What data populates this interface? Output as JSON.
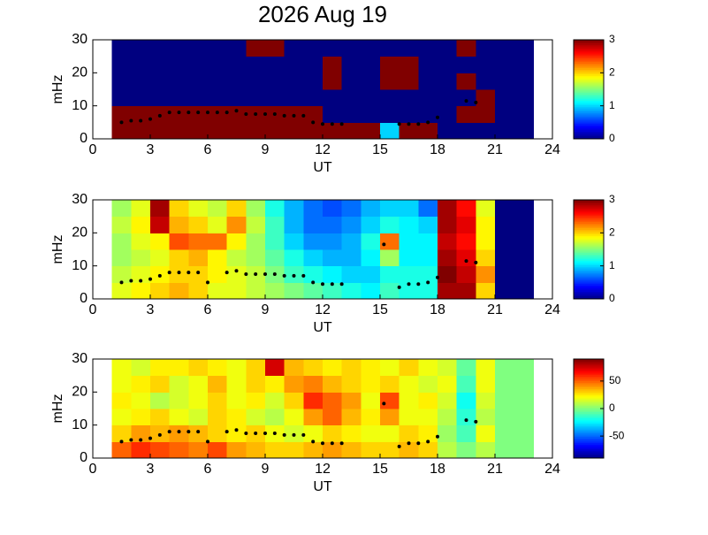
{
  "chart_data": [
    {
      "type": "heatmap",
      "title": "2026 Aug 19",
      "xlabel": "UT",
      "ylabel": "mHz",
      "xlim": [
        0,
        24
      ],
      "xticks": [
        0,
        3,
        6,
        9,
        12,
        15,
        18,
        21,
        24
      ],
      "ylim": [
        0,
        30
      ],
      "yticks": [
        0,
        10,
        20,
        30
      ],
      "clim": [
        0,
        3
      ],
      "cticks": [
        0,
        1,
        2,
        3
      ],
      "colormap": "jet",
      "x": [
        1,
        2,
        3,
        4,
        5,
        6,
        7,
        8,
        9,
        10,
        11,
        12,
        13,
        14,
        15,
        16,
        17,
        18,
        19,
        20,
        21,
        22,
        23
      ],
      "y": [
        0,
        5,
        10,
        15,
        20,
        25,
        30
      ],
      "z": [
        [
          3,
          3,
          3,
          3,
          3,
          3,
          3,
          3,
          3,
          3,
          3,
          3,
          3,
          3,
          1,
          3,
          3,
          0,
          0,
          0,
          0,
          0
        ],
        [
          3,
          3,
          3,
          3,
          3,
          3,
          3,
          3,
          3,
          3,
          3,
          0,
          0,
          0,
          0,
          0,
          0,
          0,
          3,
          3,
          0,
          0
        ],
        [
          0,
          0,
          0,
          0,
          0,
          0,
          0,
          0,
          0,
          0,
          0,
          0,
          0,
          0,
          0,
          0,
          0,
          0,
          0,
          3,
          0,
          0
        ],
        [
          0,
          0,
          0,
          0,
          0,
          0,
          0,
          0,
          0,
          0,
          0,
          3,
          0,
          0,
          3,
          3,
          0,
          0,
          3,
          0,
          0,
          0
        ],
        [
          0,
          0,
          0,
          0,
          0,
          0,
          0,
          0,
          0,
          0,
          0,
          3,
          0,
          0,
          3,
          3,
          0,
          0,
          0,
          0,
          0,
          0
        ],
        [
          0,
          0,
          0,
          0,
          0,
          0,
          0,
          3,
          3,
          0,
          0,
          0,
          0,
          0,
          0,
          0,
          0,
          0,
          3,
          0,
          0,
          0
        ]
      ],
      "trace": {
        "color": "#000000",
        "x": [
          1.5,
          2,
          2.5,
          3,
          3.5,
          4,
          4.5,
          5,
          5.5,
          6,
          6.5,
          7,
          7.5,
          8,
          8.5,
          9,
          9.5,
          10,
          10.5,
          11,
          11.5,
          12,
          12.5,
          13,
          16,
          16.5,
          17,
          17.5,
          18,
          19.5,
          20
        ],
        "y": [
          5,
          5.5,
          5.5,
          6,
          7,
          8,
          8,
          8,
          8,
          8,
          8,
          8,
          8.5,
          7.5,
          7.5,
          7.5,
          7.5,
          7,
          7,
          7,
          5,
          4.5,
          4.5,
          4.5,
          4.5,
          4.5,
          4.5,
          5,
          6.5,
          11.5,
          11
        ]
      }
    },
    {
      "type": "heatmap",
      "xlabel": "UT",
      "ylabel": "mHz",
      "xlim": [
        0,
        24
      ],
      "xticks": [
        0,
        3,
        6,
        9,
        12,
        15,
        18,
        21,
        24
      ],
      "ylim": [
        0,
        30
      ],
      "yticks": [
        0,
        10,
        20,
        30
      ],
      "clim": [
        0,
        3
      ],
      "cticks": [
        0,
        1,
        2,
        3
      ],
      "colormap": "jet",
      "x": [
        1,
        2,
        3,
        4,
        5,
        6,
        7,
        8,
        9,
        10,
        11,
        12,
        13,
        14,
        15,
        16,
        17,
        18,
        19,
        20,
        21,
        22,
        23
      ],
      "y": [
        0,
        5,
        10,
        15,
        20,
        25,
        30
      ],
      "z": [
        [
          1.8,
          1.9,
          2.0,
          2.1,
          2.0,
          1.8,
          1.8,
          1.7,
          1.6,
          1.5,
          1.4,
          1.3,
          1.2,
          1.1,
          1.3,
          1.2,
          1.2,
          2.9,
          2.9,
          2.0,
          0,
          0
        ],
        [
          1.7,
          1.8,
          1.9,
          2.0,
          2.0,
          1.9,
          1.8,
          1.7,
          1.5,
          1.3,
          1.2,
          1.1,
          1.0,
          1.0,
          1.2,
          1.2,
          1.2,
          3.0,
          2.8,
          2.2,
          0,
          0
        ],
        [
          1.6,
          1.7,
          1.8,
          2.0,
          2.1,
          1.9,
          1.7,
          1.6,
          1.4,
          1.2,
          1.0,
          0.9,
          0.9,
          1.1,
          1.6,
          1.1,
          1.1,
          2.9,
          2.7,
          2.0,
          0,
          0
        ],
        [
          1.6,
          1.8,
          1.9,
          2.4,
          2.3,
          2.3,
          1.9,
          1.6,
          1.3,
          1.0,
          0.8,
          0.8,
          0.9,
          1.2,
          2.3,
          1.1,
          1.1,
          2.8,
          2.6,
          1.9,
          0,
          0
        ],
        [
          1.7,
          1.9,
          2.8,
          2.1,
          2.0,
          1.8,
          2.2,
          1.7,
          1.3,
          0.9,
          0.7,
          0.7,
          0.8,
          1.0,
          1.2,
          1.1,
          1.0,
          2.9,
          2.7,
          1.9,
          0,
          0
        ],
        [
          1.6,
          1.8,
          2.9,
          2.0,
          1.8,
          1.7,
          2.0,
          1.6,
          1.2,
          0.9,
          0.7,
          0.6,
          0.7,
          0.9,
          1.0,
          1.0,
          0.7,
          2.9,
          2.6,
          1.8,
          0,
          0
        ]
      ],
      "trace": {
        "color": "#000000",
        "x": [
          1.5,
          2,
          2.5,
          3,
          3.5,
          4,
          4.5,
          5,
          5.5,
          6,
          7,
          7.5,
          8,
          8.5,
          9,
          9.5,
          10,
          10.5,
          11,
          11.5,
          12,
          12.5,
          13,
          15.2,
          16,
          16.5,
          17,
          17.5,
          18,
          19.5,
          20
        ],
        "y": [
          5,
          5.5,
          5.5,
          6,
          7,
          8,
          8,
          8,
          8,
          5,
          8,
          8.5,
          7.5,
          7.5,
          7.5,
          7.5,
          7,
          7,
          7,
          5,
          4.5,
          4.5,
          4.5,
          16.5,
          3.5,
          4.5,
          4.5,
          5,
          6.5,
          11.5,
          11
        ]
      }
    },
    {
      "type": "heatmap",
      "xlabel": "UT",
      "ylabel": "mHz",
      "xlim": [
        0,
        24
      ],
      "xticks": [
        0,
        3,
        6,
        9,
        12,
        15,
        18,
        21,
        24
      ],
      "ylim": [
        0,
        30
      ],
      "yticks": [
        0,
        10,
        20,
        30
      ],
      "clim": [
        -90,
        90
      ],
      "cticks": [
        -50,
        0,
        50
      ],
      "colormap": "jet",
      "x": [
        1,
        2,
        3,
        4,
        5,
        6,
        7,
        8,
        9,
        10,
        11,
        12,
        13,
        14,
        15,
        16,
        17,
        18,
        19,
        20,
        21,
        22,
        23
      ],
      "y": [
        0,
        5,
        10,
        15,
        20,
        25,
        30
      ],
      "z": [
        [
          50,
          60,
          55,
          50,
          45,
          55,
          40,
          35,
          30,
          30,
          35,
          40,
          35,
          30,
          30,
          35,
          30,
          10,
          0,
          10,
          0,
          0
        ],
        [
          30,
          40,
          35,
          40,
          35,
          30,
          25,
          30,
          20,
          15,
          20,
          30,
          25,
          20,
          20,
          30,
          25,
          5,
          -10,
          20,
          0,
          0
        ],
        [
          20,
          25,
          30,
          20,
          15,
          30,
          25,
          15,
          10,
          20,
          40,
          50,
          35,
          25,
          40,
          20,
          20,
          10,
          -15,
          10,
          0,
          0
        ],
        [
          25,
          20,
          10,
          15,
          20,
          30,
          20,
          25,
          15,
          30,
          60,
          50,
          40,
          20,
          55,
          20,
          25,
          15,
          -20,
          15,
          0,
          0
        ],
        [
          20,
          25,
          30,
          15,
          20,
          35,
          20,
          30,
          25,
          40,
          45,
          35,
          30,
          25,
          30,
          20,
          15,
          20,
          -10,
          20,
          0,
          0
        ],
        [
          20,
          15,
          25,
          25,
          30,
          25,
          20,
          30,
          75,
          35,
          30,
          25,
          30,
          25,
          20,
          30,
          20,
          15,
          -5,
          20,
          0,
          0
        ]
      ],
      "trace": {
        "color": "#000000",
        "x": [
          1.5,
          2,
          2.5,
          3,
          3.5,
          4,
          4.5,
          5,
          5.5,
          6,
          7,
          7.5,
          8,
          8.5,
          9,
          9.5,
          10,
          10.5,
          11,
          11.5,
          12,
          12.5,
          13,
          15.2,
          16,
          16.5,
          17,
          17.5,
          18,
          19.5,
          20
        ],
        "y": [
          5,
          5.5,
          5.5,
          6,
          7,
          8,
          8,
          8,
          8,
          5,
          8,
          8.5,
          7.5,
          7.5,
          7.5,
          7.5,
          7,
          7,
          7,
          5,
          4.5,
          4.5,
          4.5,
          16.5,
          3.5,
          4.5,
          4.5,
          5,
          6.5,
          11.5,
          11
        ]
      }
    }
  ]
}
